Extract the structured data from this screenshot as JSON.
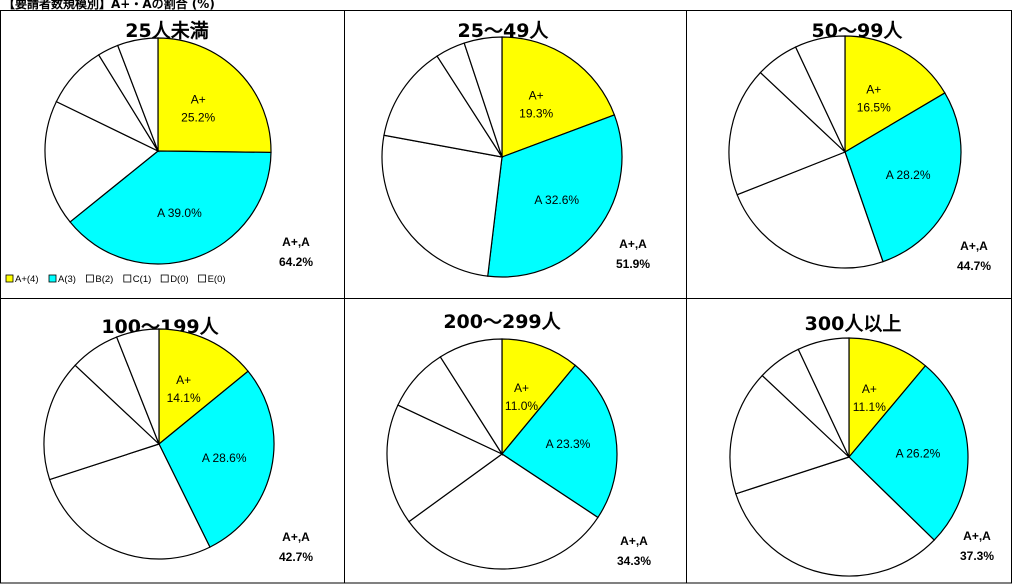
{
  "header": "【要請者数規模別】A+・Aの割合 (%)",
  "categories_legend": [
    "A+(4)",
    "A(3)",
    "B(2)",
    "C(1)",
    "D(0)",
    "E(0)"
  ],
  "colors": {
    "A+": "#ffff00",
    "A": "#00ffff",
    "other": "#ffffff",
    "stroke": "#000000"
  },
  "chart_data": [
    {
      "type": "pie",
      "title": "25人未満",
      "slices": [
        {
          "label": "A+",
          "value": 25.2
        },
        {
          "label": "A",
          "value": 39.0
        },
        {
          "label": "B",
          "value": 18.0
        },
        {
          "label": "C",
          "value": 9.0
        },
        {
          "label": "D",
          "value": 3.0
        },
        {
          "label": "E",
          "value": 5.8
        }
      ],
      "sum_name": "A+,A",
      "sum_value": "64.2%"
    },
    {
      "type": "pie",
      "title": "25～49人",
      "slices": [
        {
          "label": "A+",
          "value": 19.3
        },
        {
          "label": "A",
          "value": 32.6
        },
        {
          "label": "B",
          "value": 26.0
        },
        {
          "label": "C",
          "value": 13.0
        },
        {
          "label": "D",
          "value": 4.0
        },
        {
          "label": "E",
          "value": 5.1
        }
      ],
      "sum_name": "A+,A",
      "sum_value": "51.9%"
    },
    {
      "type": "pie",
      "title": "50～99人",
      "slices": [
        {
          "label": "A+",
          "value": 16.5
        },
        {
          "label": "A",
          "value": 28.2
        },
        {
          "label": "B",
          "value": 24.3
        },
        {
          "label": "C",
          "value": 18.0
        },
        {
          "label": "D",
          "value": 6.0
        },
        {
          "label": "E",
          "value": 7.0
        }
      ],
      "sum_name": "A+,A",
      "sum_value": "44.7%"
    },
    {
      "type": "pie",
      "title": "100～199人",
      "slices": [
        {
          "label": "A+",
          "value": 14.1
        },
        {
          "label": "A",
          "value": 28.6
        },
        {
          "label": "B",
          "value": 27.3
        },
        {
          "label": "C",
          "value": 17.0
        },
        {
          "label": "D",
          "value": 7.0
        },
        {
          "label": "E",
          "value": 6.0
        }
      ],
      "sum_name": "A+,A",
      "sum_value": "42.7%"
    },
    {
      "type": "pie",
      "title": "200～299人",
      "slices": [
        {
          "label": "A+",
          "value": 11.0
        },
        {
          "label": "A",
          "value": 23.3
        },
        {
          "label": "B",
          "value": 30.7
        },
        {
          "label": "C",
          "value": 17.0
        },
        {
          "label": "D",
          "value": 9.0
        },
        {
          "label": "E",
          "value": 9.0
        }
      ],
      "sum_name": "A+,A",
      "sum_value": "34.3%"
    },
    {
      "type": "pie",
      "title": "300人以上",
      "slices": [
        {
          "label": "A+",
          "value": 11.1
        },
        {
          "label": "A",
          "value": 26.2
        },
        {
          "label": "B",
          "value": 32.7
        },
        {
          "label": "C",
          "value": 17.0
        },
        {
          "label": "D",
          "value": 6.0
        },
        {
          "label": "E",
          "value": 7.0
        }
      ],
      "sum_name": "A+,A",
      "sum_value": "37.3%"
    }
  ]
}
